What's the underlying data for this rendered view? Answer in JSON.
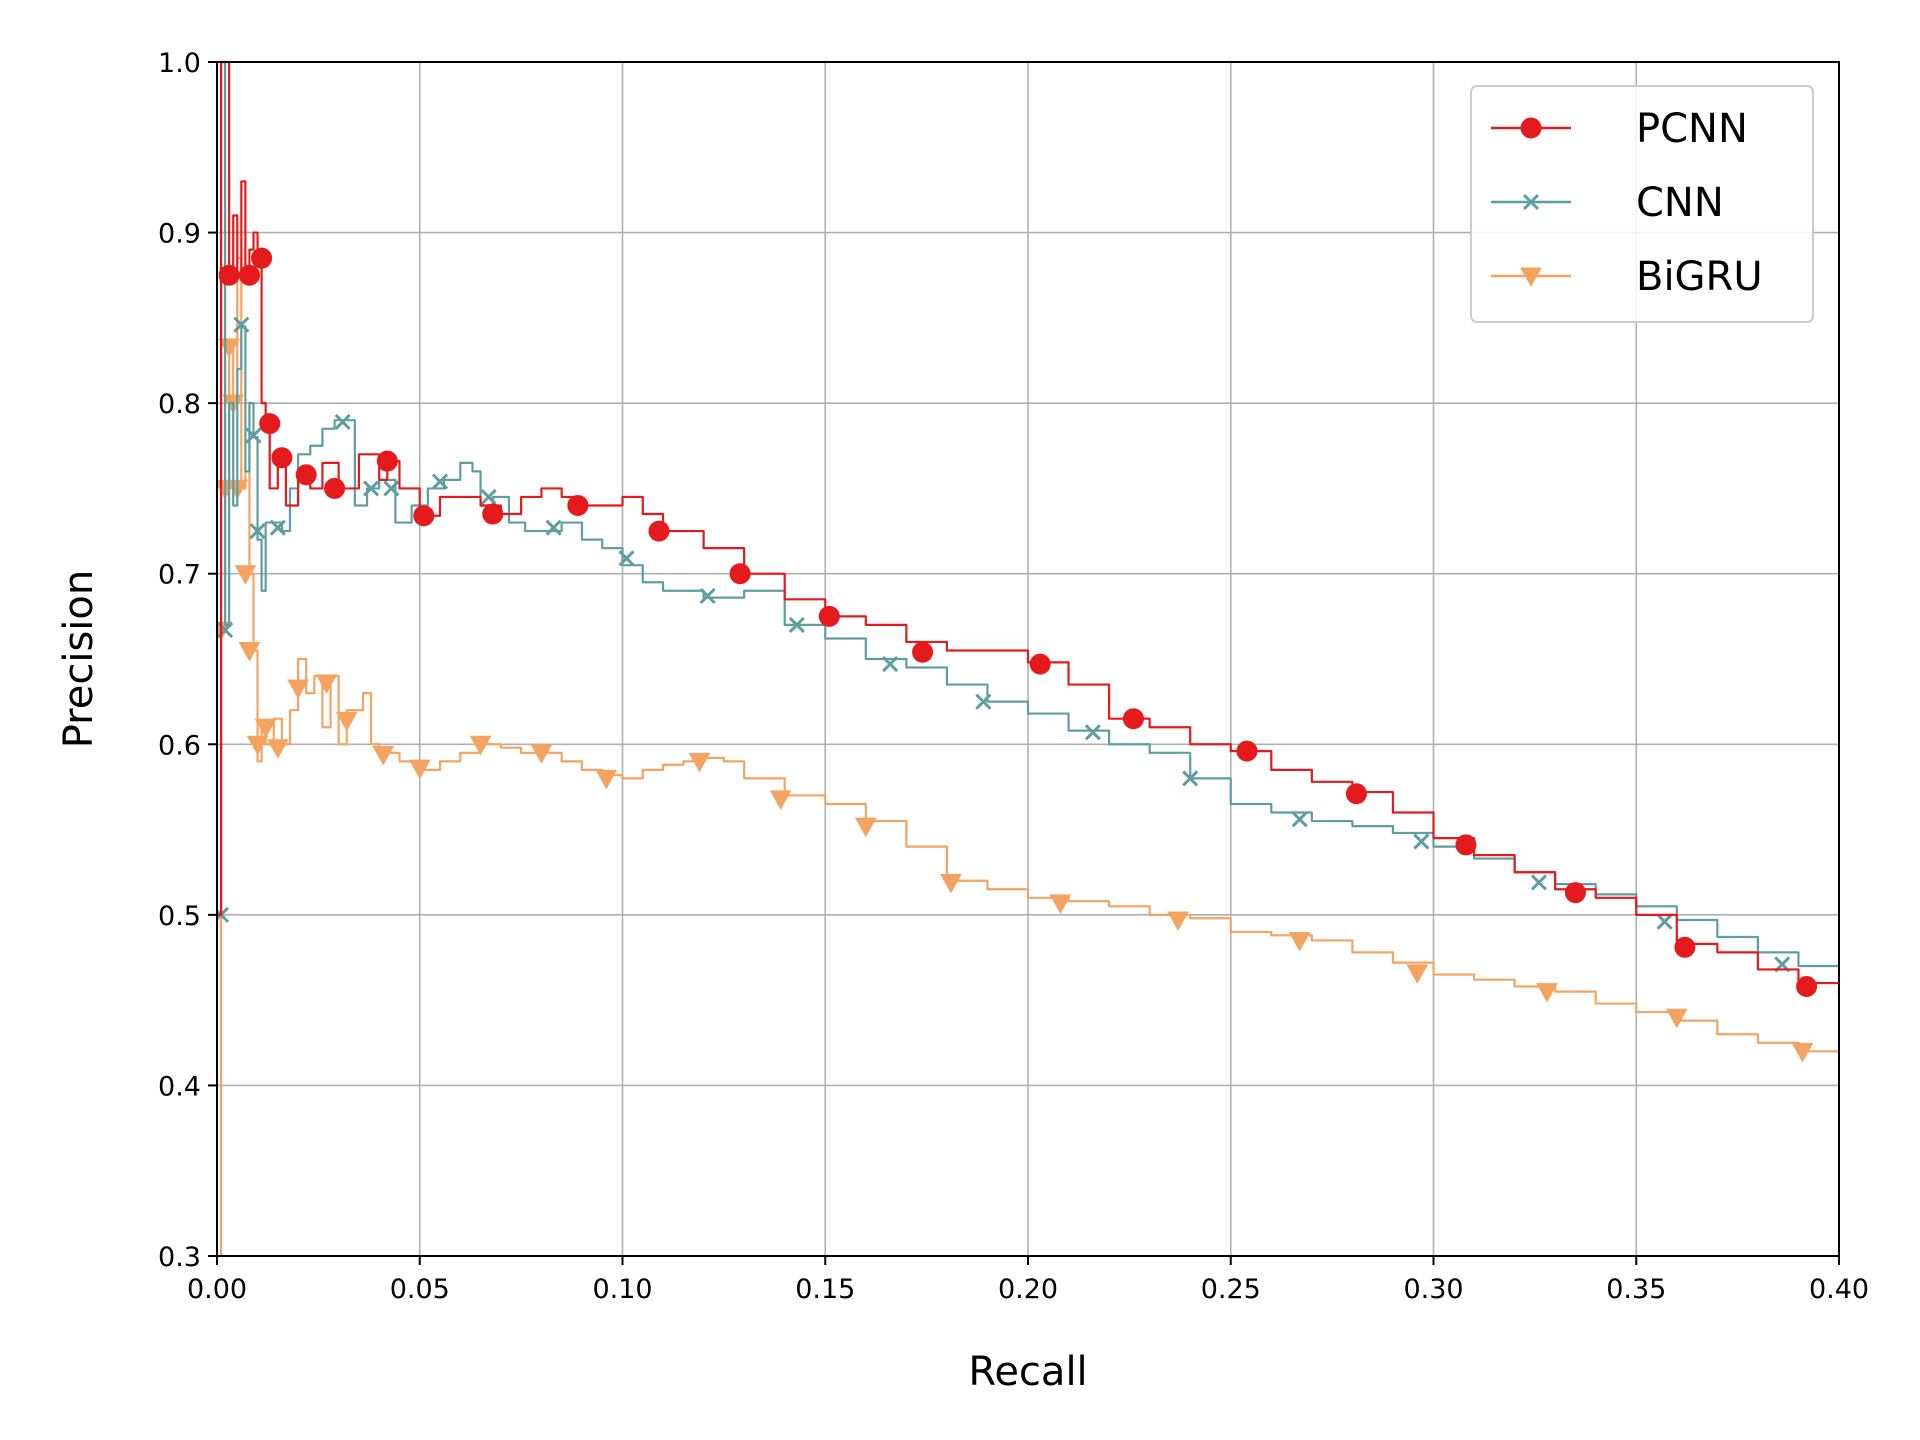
{
  "chart_data": {
    "type": "line",
    "title": "",
    "xlabel": "Recall",
    "ylabel": "Precision",
    "xlim": [
      0.0,
      0.4
    ],
    "ylim": [
      0.3,
      1.0
    ],
    "x_ticks": [
      "0.00",
      "0.05",
      "0.10",
      "0.15",
      "0.20",
      "0.25",
      "0.30",
      "0.35",
      "0.40"
    ],
    "y_ticks": [
      "0.3",
      "0.4",
      "0.5",
      "0.6",
      "0.7",
      "0.8",
      "0.9",
      "1.0"
    ],
    "grid": true,
    "legend_position": "top-right",
    "series": [
      {
        "name": "PCNN",
        "color": "#e41a1c",
        "marker": "circle",
        "x": [
          0.0,
          0.001,
          0.002,
          0.003,
          0.004,
          0.005,
          0.006,
          0.007,
          0.008,
          0.009,
          0.01,
          0.011,
          0.012,
          0.013,
          0.015,
          0.017,
          0.02,
          0.023,
          0.026,
          0.03,
          0.035,
          0.04,
          0.042,
          0.045,
          0.05,
          0.055,
          0.06,
          0.065,
          0.07,
          0.075,
          0.08,
          0.085,
          0.09,
          0.095,
          0.1,
          0.105,
          0.11,
          0.12,
          0.13,
          0.14,
          0.15,
          0.16,
          0.17,
          0.18,
          0.19,
          0.2,
          0.21,
          0.22,
          0.23,
          0.24,
          0.25,
          0.26,
          0.27,
          0.28,
          0.29,
          0.3,
          0.31,
          0.32,
          0.33,
          0.34,
          0.35,
          0.36,
          0.37,
          0.38,
          0.39,
          0.4
        ],
        "y": [
          0.5,
          1.0,
          1.0,
          0.875,
          0.91,
          0.875,
          0.93,
          0.875,
          0.89,
          0.9,
          0.885,
          0.8,
          0.788,
          0.75,
          0.768,
          0.74,
          0.76,
          0.75,
          0.765,
          0.75,
          0.77,
          0.755,
          0.766,
          0.75,
          0.734,
          0.745,
          0.745,
          0.74,
          0.735,
          0.745,
          0.75,
          0.745,
          0.74,
          0.74,
          0.745,
          0.735,
          0.725,
          0.715,
          0.7,
          0.685,
          0.675,
          0.67,
          0.66,
          0.655,
          0.655,
          0.648,
          0.635,
          0.615,
          0.61,
          0.6,
          0.596,
          0.585,
          0.578,
          0.572,
          0.56,
          0.545,
          0.535,
          0.525,
          0.515,
          0.51,
          0.5,
          0.483,
          0.478,
          0.468,
          0.46,
          0.452
        ],
        "marker_x": [
          0.003,
          0.008,
          0.011,
          0.013,
          0.016,
          0.022,
          0.029,
          0.042,
          0.051,
          0.068,
          0.089,
          0.109,
          0.129,
          0.151,
          0.174,
          0.203,
          0.226,
          0.254,
          0.281,
          0.308,
          0.335,
          0.362,
          0.392
        ],
        "marker_y": [
          0.875,
          0.875,
          0.885,
          0.788,
          0.768,
          0.758,
          0.75,
          0.766,
          0.734,
          0.735,
          0.74,
          0.725,
          0.7,
          0.675,
          0.654,
          0.647,
          0.615,
          0.596,
          0.571,
          0.541,
          0.513,
          0.481,
          0.458
        ]
      },
      {
        "name": "CNN",
        "color": "#5f9ea0",
        "marker": "x",
        "x": [
          0.0,
          0.001,
          0.002,
          0.003,
          0.004,
          0.005,
          0.006,
          0.007,
          0.008,
          0.009,
          0.01,
          0.011,
          0.012,
          0.014,
          0.016,
          0.018,
          0.02,
          0.023,
          0.026,
          0.029,
          0.031,
          0.034,
          0.037,
          0.04,
          0.044,
          0.048,
          0.052,
          0.056,
          0.06,
          0.063,
          0.065,
          0.068,
          0.072,
          0.076,
          0.08,
          0.085,
          0.09,
          0.095,
          0.1,
          0.105,
          0.11,
          0.12,
          0.13,
          0.14,
          0.15,
          0.16,
          0.17,
          0.18,
          0.19,
          0.2,
          0.21,
          0.22,
          0.23,
          0.24,
          0.25,
          0.26,
          0.27,
          0.28,
          0.29,
          0.3,
          0.31,
          0.32,
          0.33,
          0.34,
          0.35,
          0.36,
          0.37,
          0.38,
          0.39,
          0.4
        ],
        "y": [
          0.5,
          1.0,
          0.67,
          0.8,
          0.74,
          0.82,
          0.845,
          0.76,
          0.8,
          0.78,
          0.72,
          0.69,
          0.73,
          0.73,
          0.725,
          0.75,
          0.77,
          0.775,
          0.785,
          0.79,
          0.79,
          0.74,
          0.75,
          0.755,
          0.73,
          0.74,
          0.75,
          0.755,
          0.765,
          0.76,
          0.74,
          0.745,
          0.73,
          0.725,
          0.725,
          0.73,
          0.72,
          0.715,
          0.705,
          0.695,
          0.69,
          0.686,
          0.69,
          0.67,
          0.662,
          0.65,
          0.645,
          0.635,
          0.625,
          0.618,
          0.608,
          0.6,
          0.595,
          0.58,
          0.565,
          0.56,
          0.555,
          0.552,
          0.548,
          0.54,
          0.533,
          0.525,
          0.518,
          0.512,
          0.505,
          0.497,
          0.487,
          0.478,
          0.47,
          0.462
        ],
        "marker_x": [
          0.001,
          0.002,
          0.006,
          0.009,
          0.01,
          0.015,
          0.031,
          0.038,
          0.043,
          0.055,
          0.067,
          0.083,
          0.101,
          0.121,
          0.143,
          0.166,
          0.189,
          0.216,
          0.24,
          0.267,
          0.297,
          0.326,
          0.357,
          0.386
        ],
        "marker_y": [
          0.5,
          0.667,
          0.846,
          0.781,
          0.725,
          0.727,
          0.789,
          0.75,
          0.75,
          0.754,
          0.745,
          0.727,
          0.709,
          0.687,
          0.67,
          0.647,
          0.625,
          0.607,
          0.58,
          0.556,
          0.543,
          0.519,
          0.496,
          0.471
        ]
      },
      {
        "name": "BiGRU",
        "color": "#f4a460",
        "marker": "triangle-down",
        "x": [
          0.0,
          0.001,
          0.002,
          0.003,
          0.004,
          0.005,
          0.006,
          0.007,
          0.008,
          0.009,
          0.01,
          0.011,
          0.012,
          0.014,
          0.016,
          0.018,
          0.02,
          0.022,
          0.024,
          0.026,
          0.028,
          0.03,
          0.032,
          0.034,
          0.036,
          0.038,
          0.04,
          0.045,
          0.05,
          0.055,
          0.06,
          0.065,
          0.07,
          0.075,
          0.08,
          0.085,
          0.09,
          0.095,
          0.1,
          0.105,
          0.11,
          0.115,
          0.12,
          0.125,
          0.13,
          0.14,
          0.15,
          0.16,
          0.17,
          0.18,
          0.19,
          0.2,
          0.21,
          0.22,
          0.23,
          0.24,
          0.25,
          0.26,
          0.27,
          0.28,
          0.29,
          0.3,
          0.31,
          0.32,
          0.33,
          0.34,
          0.35,
          0.36,
          0.37,
          0.38,
          0.39,
          0.4
        ],
        "y": [
          0.3,
          0.67,
          0.75,
          0.835,
          0.8,
          0.885,
          0.75,
          0.8,
          0.7,
          0.655,
          0.59,
          0.61,
          0.6,
          0.615,
          0.6,
          0.62,
          0.65,
          0.63,
          0.64,
          0.61,
          0.64,
          0.6,
          0.62,
          0.62,
          0.63,
          0.6,
          0.595,
          0.59,
          0.585,
          0.59,
          0.595,
          0.6,
          0.598,
          0.595,
          0.595,
          0.59,
          0.585,
          0.582,
          0.58,
          0.585,
          0.588,
          0.59,
          0.592,
          0.59,
          0.58,
          0.57,
          0.565,
          0.555,
          0.54,
          0.52,
          0.515,
          0.51,
          0.508,
          0.505,
          0.5,
          0.498,
          0.49,
          0.488,
          0.485,
          0.478,
          0.472,
          0.465,
          0.462,
          0.458,
          0.455,
          0.448,
          0.443,
          0.438,
          0.43,
          0.425,
          0.42,
          0.415
        ],
        "marker_x": [
          0.001,
          0.002,
          0.003,
          0.004,
          0.005,
          0.007,
          0.008,
          0.01,
          0.012,
          0.015,
          0.02,
          0.027,
          0.032,
          0.041,
          0.05,
          0.065,
          0.08,
          0.096,
          0.119,
          0.139,
          0.16,
          0.181,
          0.208,
          0.237,
          0.267,
          0.296,
          0.328,
          0.36,
          0.391
        ],
        "marker_y": [
          0.667,
          0.75,
          0.833,
          0.8,
          0.75,
          0.7,
          0.655,
          0.6,
          0.61,
          0.598,
          0.633,
          0.636,
          0.614,
          0.594,
          0.586,
          0.6,
          0.595,
          0.58,
          0.59,
          0.568,
          0.552,
          0.519,
          0.507,
          0.497,
          0.485,
          0.466,
          0.455,
          0.44,
          0.42
        ]
      }
    ]
  }
}
